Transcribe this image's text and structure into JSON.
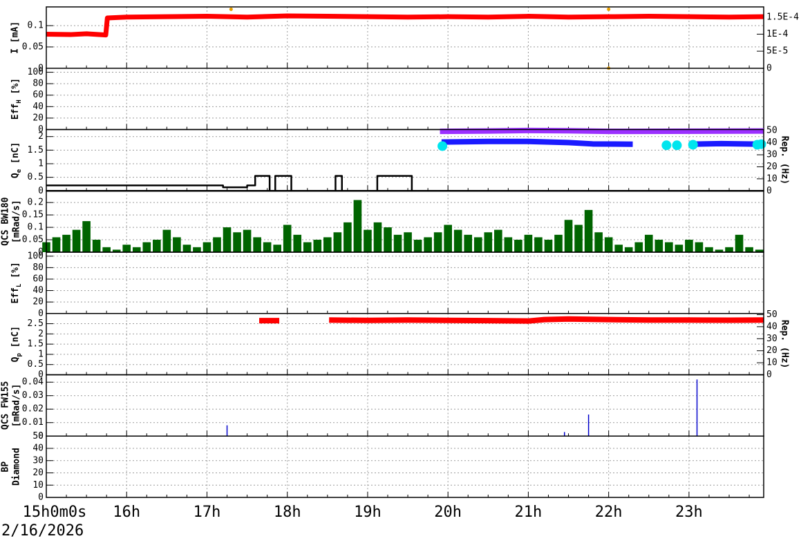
{
  "chart_data": [
    {
      "type": "line",
      "ylabel": [
        "I [mA]"
      ],
      "ylim": [
        0,
        0.144
      ],
      "yticks": [
        0,
        0.05,
        0.1
      ],
      "y2lim": [
        0,
        0.00018
      ],
      "y2ticks": [
        0,
        {
          "value": 5e-05,
          "label": "5E-5"
        },
        {
          "value": 0.0001,
          "label": "1E-4"
        },
        {
          "value": 0.00015,
          "label": "1.5E-4"
        }
      ],
      "grid": true,
      "series": [
        {
          "color": "#ff0000",
          "style": "line",
          "x": [
            15,
            15.3,
            15.5,
            15.74,
            15.76,
            16,
            16.5,
            17,
            17.5,
            18,
            18.5,
            19,
            19.5,
            20,
            20.5,
            21,
            21.5,
            22,
            22.5,
            23,
            23.5,
            23.93
          ],
          "values": [
            0.08,
            0.079,
            0.081,
            0.078,
            0.118,
            0.12,
            0.121,
            0.122,
            0.12,
            0.123,
            0.122,
            0.121,
            0.12,
            0.121,
            0.12,
            0.122,
            0.12,
            0.121,
            0.122,
            0.121,
            0.12,
            0.121
          ]
        },
        {
          "color": "#e8a000",
          "style": "points",
          "axis": "y2",
          "x": [
            17.3,
            22.0,
            22.0
          ],
          "values": [
            0.000173,
            0.000173,
            0
          ]
        }
      ]
    },
    {
      "type": "line",
      "ylabel": [
        "Eff",
        "H",
        " [%]"
      ],
      "ylim": [
        0,
        107
      ],
      "yticks": [
        0,
        20,
        40,
        60,
        80,
        100
      ],
      "grid": true,
      "series": []
    },
    {
      "type": "line",
      "ylabel": [
        "Q",
        "e",
        " [nC]"
      ],
      "ylim": [
        0,
        2.26
      ],
      "yticks": [
        0,
        0.5,
        1,
        1.5,
        2
      ],
      "y2label": "Rep. (Hz)",
      "y2lim": [
        0,
        51
      ],
      "y2ticks": [
        0,
        10,
        20,
        30,
        40,
        50
      ],
      "grid": true,
      "series": [
        {
          "color": "#000000",
          "style": "line",
          "x": [
            15,
            23.93
          ],
          "values": [
            0,
            0
          ]
        },
        {
          "color": "#000000",
          "style": "line",
          "x": [
            15,
            17.2,
            17.2,
            17.5,
            17.5,
            17.6,
            17.6,
            17.78,
            17.78,
            17.85,
            17.85,
            18.05,
            18.05,
            18.6,
            18.6,
            18.68,
            18.68,
            19.12,
            19.12,
            19.55,
            19.55,
            23.93
          ],
          "values": [
            0.2,
            0.2,
            0.13,
            0.13,
            0.2,
            0.2,
            0.55,
            0.55,
            0,
            0,
            0.55,
            0.55,
            0,
            0,
            0.55,
            0.55,
            0,
            0,
            0.55,
            0.55,
            0,
            0
          ]
        },
        {
          "color": "#9b30ff",
          "style": "thick",
          "axis": "y2",
          "x": [
            19.9,
            20.5,
            21.0,
            21.5,
            22.0,
            22.3,
            23.93
          ],
          "values": [
            49.5,
            49.8,
            50.2,
            50,
            49.5,
            49.5,
            49.8
          ]
        },
        {
          "color": "#1a1aff",
          "style": "thick",
          "x": [
            19.92,
            20.5,
            21.0,
            21.5,
            21.8,
            22.3,
            22.5,
            23.0,
            23.4,
            23.93
          ],
          "values": [
            1.8,
            1.82,
            1.82,
            1.78,
            1.73,
            1.72,
            null,
            1.72,
            1.74,
            1.72
          ]
        },
        {
          "color": "#00e5ee",
          "style": "points",
          "x": [
            19.93,
            22.72,
            22.85,
            23.05,
            23.85,
            23.9
          ],
          "values": [
            1.65,
            1.68,
            1.68,
            1.7,
            1.7,
            1.72
          ]
        }
      ]
    },
    {
      "type": "bar",
      "ylabel": [
        "QCS BW180",
        "[mRad/s]"
      ],
      "ylim": [
        0,
        0.247
      ],
      "yticks": [
        0,
        0.05,
        0.1,
        0.15,
        0.2
      ],
      "grid": true,
      "series": [
        {
          "color": "#006400",
          "style": "bars",
          "x": [
            15,
            15.125,
            15.25,
            15.375,
            15.5,
            15.625,
            15.75,
            15.875,
            16,
            16.125,
            16.25,
            16.375,
            16.5,
            16.625,
            16.75,
            16.875,
            17,
            17.125,
            17.25,
            17.375,
            17.5,
            17.625,
            17.75,
            17.875,
            18,
            18.125,
            18.25,
            18.375,
            18.5,
            18.625,
            18.75,
            18.875,
            19,
            19.125,
            19.25,
            19.375,
            19.5,
            19.625,
            19.75,
            19.875,
            20,
            20.125,
            20.25,
            20.375,
            20.5,
            20.625,
            20.75,
            20.875,
            21,
            21.125,
            21.25,
            21.375,
            21.5,
            21.625,
            21.75,
            21.875,
            22,
            22.125,
            22.25,
            22.375,
            22.5,
            22.625,
            22.75,
            22.875,
            23,
            23.125,
            23.25,
            23.375,
            23.5,
            23.625,
            23.75,
            23.875
          ],
          "values": [
            0.04,
            0.06,
            0.07,
            0.09,
            0.125,
            0.05,
            0.02,
            0.01,
            0.03,
            0.02,
            0.04,
            0.05,
            0.09,
            0.06,
            0.03,
            0.02,
            0.04,
            0.06,
            0.1,
            0.08,
            0.09,
            0.06,
            0.04,
            0.03,
            0.11,
            0.07,
            0.04,
            0.05,
            0.06,
            0.08,
            0.12,
            0.21,
            0.09,
            0.12,
            0.1,
            0.07,
            0.08,
            0.05,
            0.06,
            0.08,
            0.11,
            0.09,
            0.07,
            0.06,
            0.08,
            0.09,
            0.06,
            0.05,
            0.07,
            0.06,
            0.05,
            0.07,
            0.13,
            0.11,
            0.17,
            0.08,
            0.06,
            0.03,
            0.02,
            0.04,
            0.07,
            0.05,
            0.04,
            0.03,
            0.05,
            0.04,
            0.02,
            0.01,
            0.02,
            0.07,
            0.02,
            0.01
          ]
        }
      ]
    },
    {
      "type": "line",
      "ylabel": [
        "Eff",
        "L",
        " [%]"
      ],
      "ylim": [
        0,
        107
      ],
      "yticks": [
        0,
        20,
        40,
        60,
        80,
        100
      ],
      "grid": true,
      "series": []
    },
    {
      "type": "line",
      "ylabel": [
        "Q",
        "p",
        " [nC]"
      ],
      "ylim": [
        0,
        3.0
      ],
      "yticks": [
        0,
        0.5,
        1,
        1.5,
        2,
        2.5
      ],
      "y2label": "Rep. (Hz)",
      "y2lim": [
        0,
        51
      ],
      "y2ticks": [
        0,
        10,
        20,
        30,
        40,
        50
      ],
      "grid": true,
      "series": [
        {
          "color": "#ff0000",
          "style": "thick",
          "x": [
            17.65,
            17.9,
            17.95,
            18.52,
            19,
            19.5,
            20,
            20.5,
            21,
            21.2,
            21.5,
            22,
            22.5,
            23,
            23.5,
            23.93
          ],
          "values": [
            2.65,
            2.65,
            null,
            2.68,
            2.66,
            2.68,
            2.66,
            2.65,
            2.63,
            2.7,
            2.73,
            2.7,
            2.68,
            2.68,
            2.67,
            2.68
          ]
        }
      ]
    },
    {
      "type": "bar",
      "ylabel": [
        "QCS FW155",
        "[mRad/s]"
      ],
      "ylim": [
        0,
        0.0455
      ],
      "yticks": [
        0,
        0.01,
        0.02,
        0.03,
        0.04
      ],
      "grid": true,
      "series": [
        {
          "color": "#0000cc",
          "style": "bars",
          "x": [
            17.25,
            21.45,
            21.75,
            23.1
          ],
          "values": [
            0.008,
            0.003,
            0.016,
            0.042
          ]
        }
      ]
    },
    {
      "type": "line",
      "ylabel": [
        "BP",
        "Diamond"
      ],
      "ylim": [
        0,
        50
      ],
      "yticks": [
        0,
        10,
        20,
        30,
        40,
        50
      ],
      "grid": true,
      "series": [],
      "xlim": [
        15,
        23.93
      ],
      "xticks": [
        {
          "value": 15,
          "label": "15h0m0s"
        },
        {
          "value": 16,
          "label": "16h"
        },
        {
          "value": 17,
          "label": "17h"
        },
        {
          "value": 18,
          "label": "18h"
        },
        {
          "value": 19,
          "label": "19h"
        },
        {
          "value": 20,
          "label": "20h"
        },
        {
          "value": 21,
          "label": "21h"
        },
        {
          "value": 22,
          "label": "22h"
        },
        {
          "value": 23,
          "label": "23h"
        }
      ],
      "date": "2/16/2026"
    }
  ]
}
